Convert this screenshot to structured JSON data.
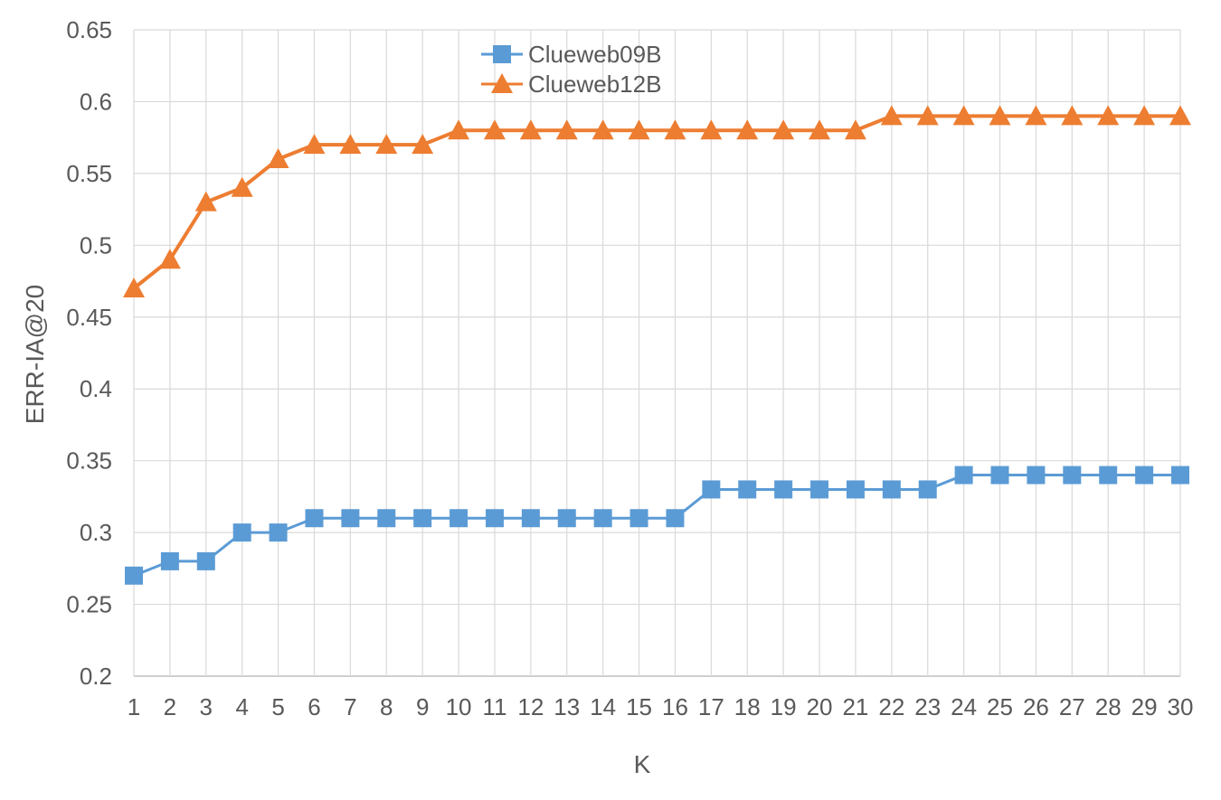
{
  "chart_data": {
    "type": "line",
    "title": "",
    "xlabel": "K",
    "ylabel": "ERR-IA@20",
    "x": [
      1,
      2,
      3,
      4,
      5,
      6,
      7,
      8,
      9,
      10,
      11,
      12,
      13,
      14,
      15,
      16,
      17,
      18,
      19,
      20,
      21,
      22,
      23,
      24,
      25,
      26,
      27,
      28,
      29,
      30
    ],
    "ylim": [
      0.2,
      0.65
    ],
    "yticks": [
      0.2,
      0.25,
      0.3,
      0.35,
      0.4,
      0.45,
      0.5,
      0.55,
      0.6,
      0.65
    ],
    "ytick_labels": [
      "0.2",
      "0.25",
      "0.3",
      "0.35",
      "0.4",
      "0.45",
      "0.5",
      "0.55",
      "0.6",
      "0.65"
    ],
    "grid": true,
    "legend_position": "top-center",
    "series": [
      {
        "name": "Clueweb09B",
        "marker": "square",
        "color": "#5b9bd5",
        "values": [
          0.27,
          0.28,
          0.28,
          0.3,
          0.3,
          0.31,
          0.31,
          0.31,
          0.31,
          0.31,
          0.31,
          0.31,
          0.31,
          0.31,
          0.31,
          0.31,
          0.33,
          0.33,
          0.33,
          0.33,
          0.33,
          0.33,
          0.33,
          0.34,
          0.34,
          0.34,
          0.34,
          0.34,
          0.34,
          0.34
        ]
      },
      {
        "name": "Clueweb12B",
        "marker": "triangle",
        "color": "#ed7d31",
        "values": [
          0.47,
          0.49,
          0.53,
          0.54,
          0.56,
          0.57,
          0.57,
          0.57,
          0.57,
          0.58,
          0.58,
          0.58,
          0.58,
          0.58,
          0.58,
          0.58,
          0.58,
          0.58,
          0.58,
          0.58,
          0.58,
          0.59,
          0.59,
          0.59,
          0.59,
          0.59,
          0.59,
          0.59,
          0.59,
          0.59
        ]
      }
    ]
  }
}
